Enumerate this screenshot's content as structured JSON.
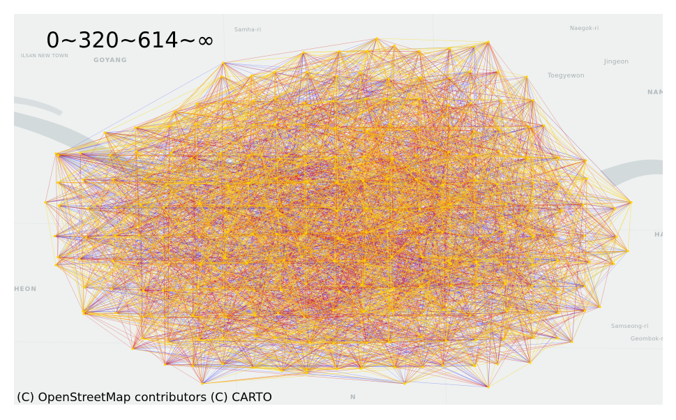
{
  "legend": {
    "title": "0~320~614~∞"
  },
  "attribution": "(C) OpenStreetMap contributors (C) CARTO",
  "basemap": {
    "labels": [
      {
        "id": "ilsan",
        "text": "ILSAN NEW TOWN"
      },
      {
        "id": "goyang",
        "text": "GOYANG"
      },
      {
        "id": "samha",
        "text": "Samha-ri"
      },
      {
        "id": "naegok",
        "text": "Naegok-ri"
      },
      {
        "id": "jingeon",
        "text": "Jingeon"
      },
      {
        "id": "toegyewon",
        "text": "Toegyewon"
      },
      {
        "id": "nam",
        "text": "NAM"
      },
      {
        "id": "ha",
        "text": "HA"
      },
      {
        "id": "heon",
        "text": "HEON"
      },
      {
        "id": "samseong",
        "text": "Samseong-ri"
      },
      {
        "id": "geombok",
        "text": "Geombok-ri"
      },
      {
        "id": "n-partial",
        "text": "N"
      }
    ]
  },
  "colors": {
    "long": "#2020ff",
    "medium": "#e01010",
    "short": "#ffd400",
    "land": "#eef1f0",
    "water": "#cfd6d8"
  },
  "network": {
    "hull": [
      [
        60,
        200
      ],
      [
        130,
        170
      ],
      [
        230,
        140
      ],
      [
        300,
        70
      ],
      [
        520,
        35
      ],
      [
        680,
        40
      ],
      [
        735,
        90
      ],
      [
        760,
        160
      ],
      [
        820,
        210
      ],
      [
        885,
        270
      ],
      [
        880,
        340
      ],
      [
        840,
        420
      ],
      [
        800,
        470
      ],
      [
        740,
        500
      ],
      [
        680,
        535
      ],
      [
        560,
        530
      ],
      [
        420,
        515
      ],
      [
        270,
        530
      ],
      [
        170,
        480
      ],
      [
        100,
        430
      ],
      [
        60,
        360
      ],
      [
        45,
        270
      ]
    ]
  }
}
